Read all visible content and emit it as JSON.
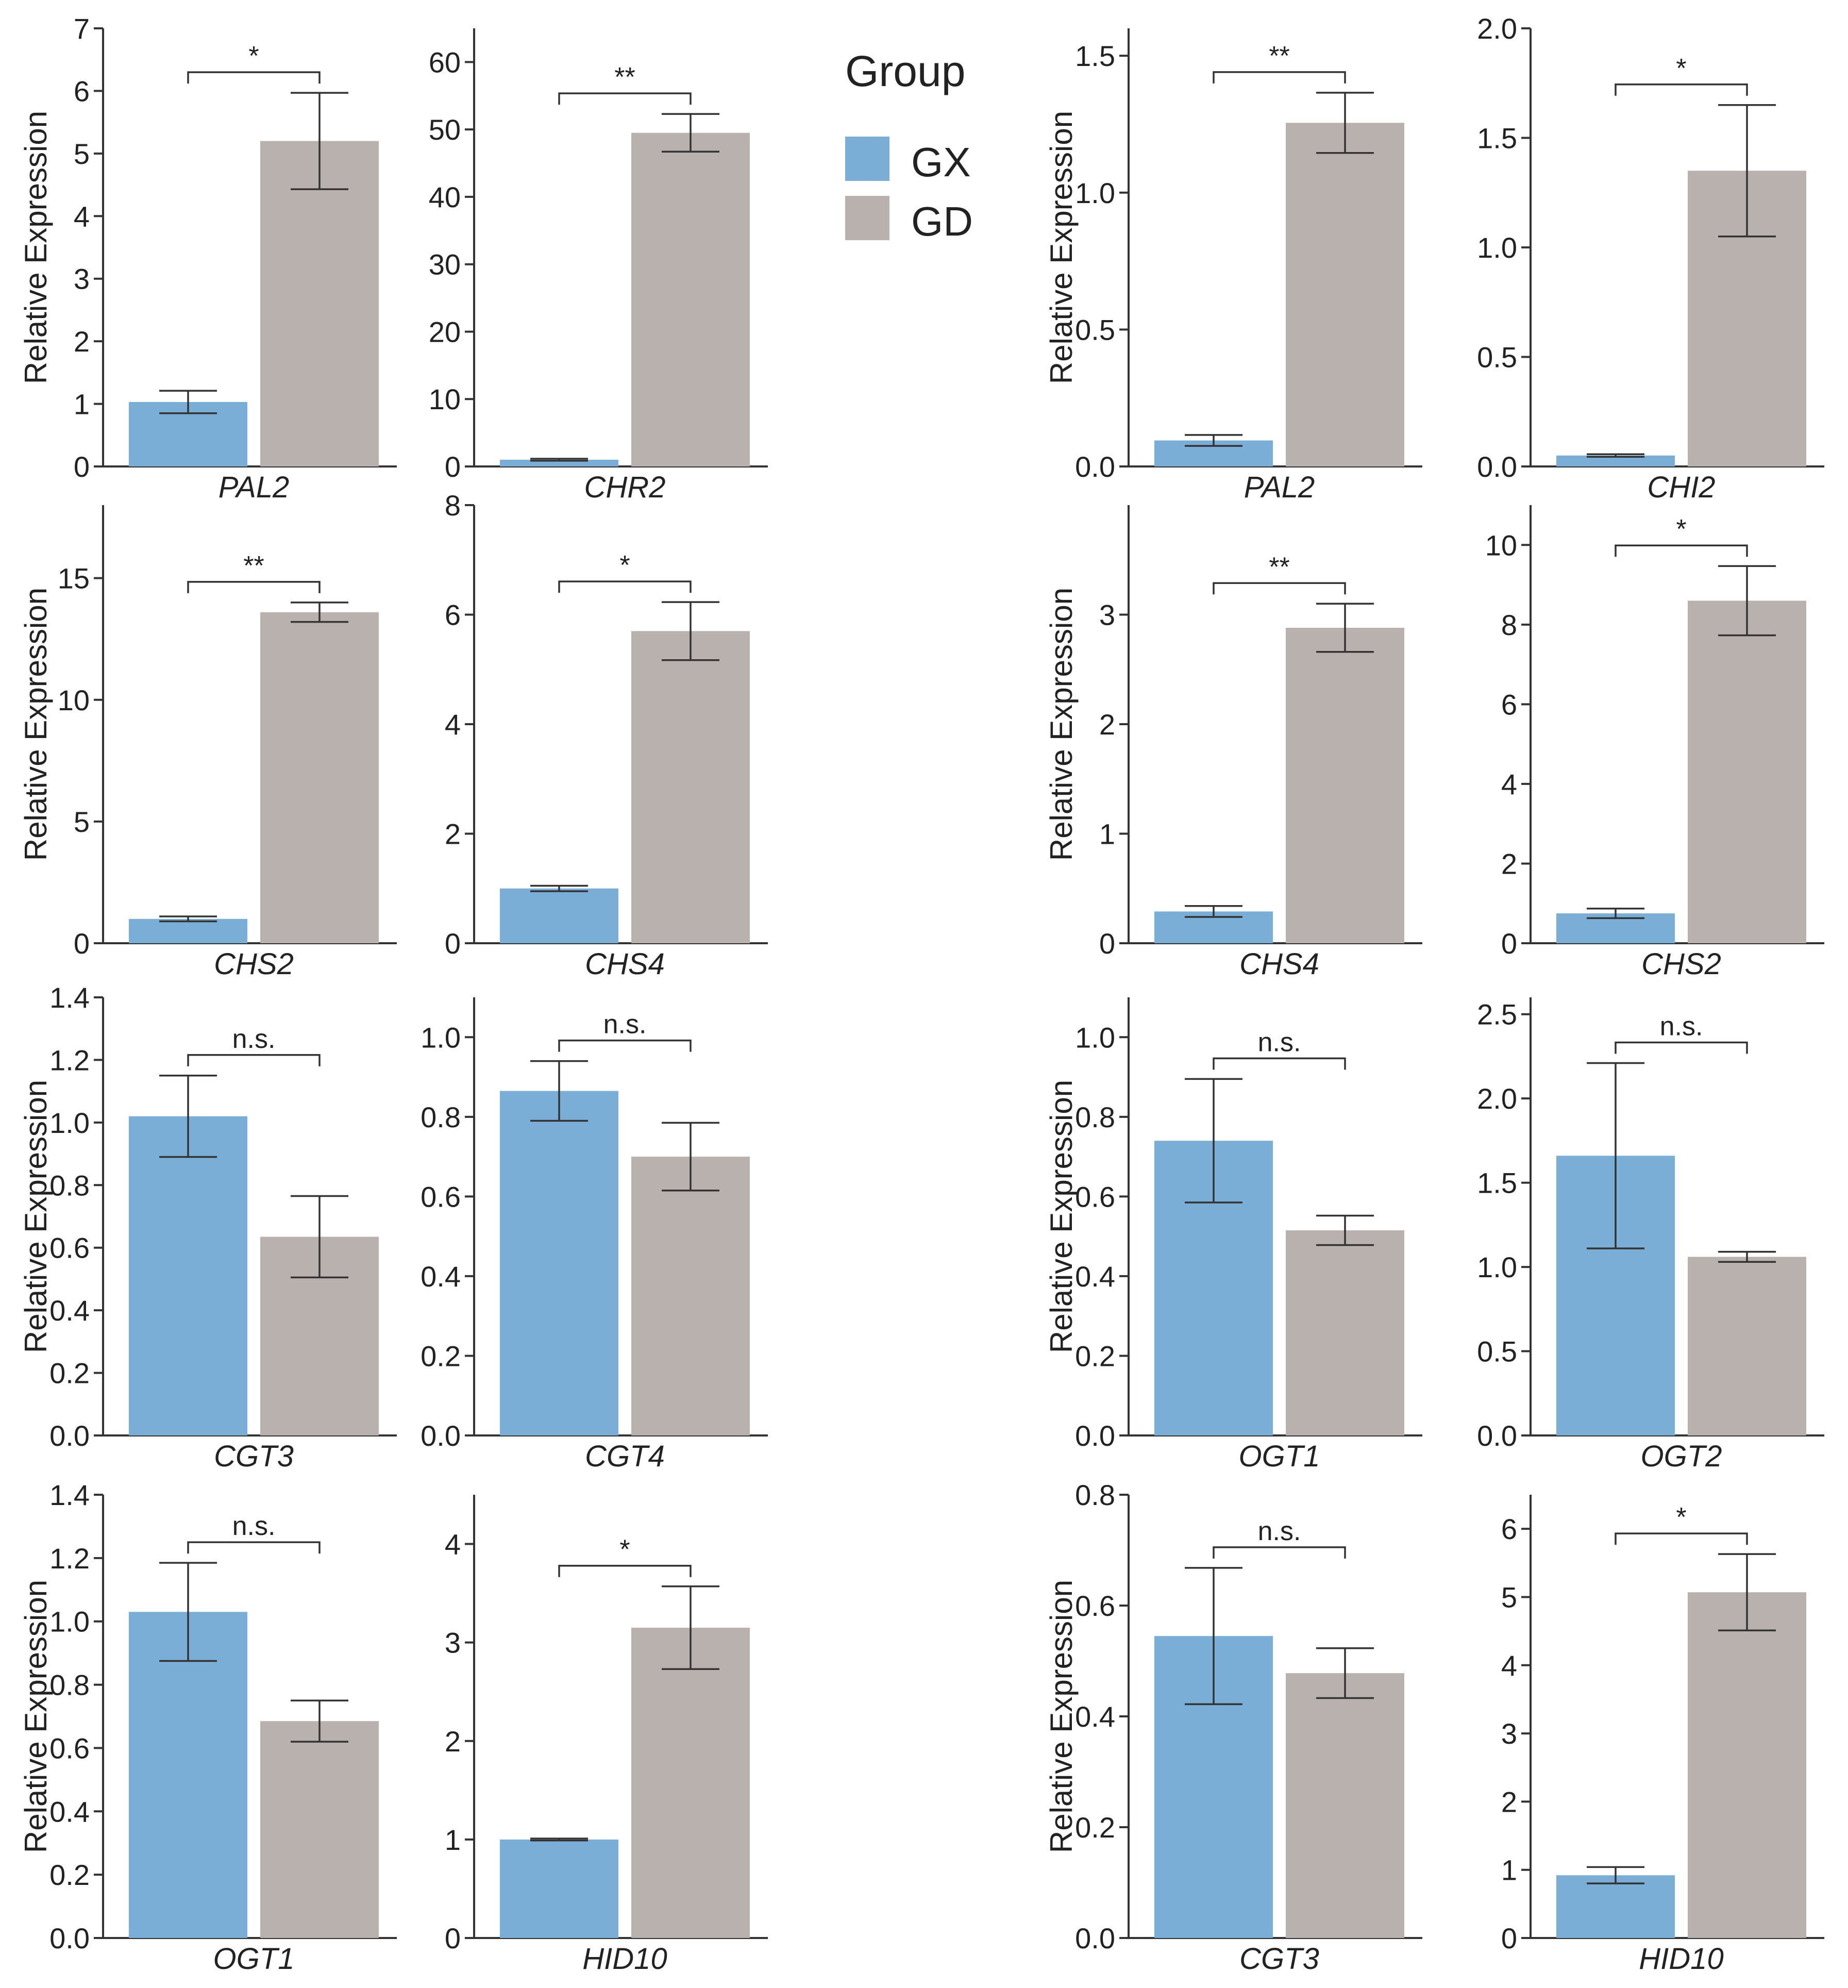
{
  "legend": {
    "title": "Group",
    "items": [
      {
        "label": "GX",
        "color": "#7aaed6"
      },
      {
        "label": "GD",
        "color": "#b9b1ad"
      }
    ]
  },
  "chart_data": [
    {
      "type": "bar",
      "title": "",
      "gene": "PAL2",
      "ylabel": "Relative  Expression",
      "ylim": [
        0,
        7
      ],
      "ticks": [
        "0",
        "1",
        "2",
        "3",
        "4",
        "5",
        "6",
        "7"
      ],
      "categories": [
        "GX",
        "GD"
      ],
      "values": [
        1.03,
        5.2
      ],
      "errors": [
        0.18,
        0.77
      ],
      "significance": "*"
    },
    {
      "type": "bar",
      "title": "",
      "gene": "CHR2",
      "ylabel": "",
      "ylim": [
        0,
        65
      ],
      "ticks": [
        "0",
        "10",
        "20",
        "30",
        "40",
        "50",
        "60"
      ],
      "categories": [
        "GX",
        "GD"
      ],
      "values": [
        1.0,
        49.5
      ],
      "errors": [
        0.15,
        2.8
      ],
      "significance": "**"
    },
    {
      "type": "bar",
      "title": "",
      "gene": "PAL2",
      "ylabel": "Relative  Expression",
      "ylim": [
        0,
        1.6
      ],
      "ticks": [
        "0.0",
        "0.5",
        "1.0",
        "1.5"
      ],
      "categories": [
        "GX",
        "GD"
      ],
      "values": [
        0.095,
        1.255
      ],
      "errors": [
        0.02,
        0.11
      ],
      "significance": "**"
    },
    {
      "type": "bar",
      "title": "",
      "gene": "CHI2",
      "ylabel": "",
      "ylim": [
        0,
        2.0
      ],
      "ticks": [
        "0.0",
        "0.5",
        "1.0",
        "1.5",
        "2.0"
      ],
      "categories": [
        "GX",
        "GD"
      ],
      "values": [
        0.05,
        1.35
      ],
      "errors": [
        0.006,
        0.3
      ],
      "significance": "*"
    },
    {
      "type": "bar",
      "title": "",
      "gene": "CHS2",
      "ylabel": "Relative  Expression",
      "ylim": [
        0,
        18
      ],
      "ticks": [
        "0",
        "5",
        "10",
        "15"
      ],
      "categories": [
        "GX",
        "GD"
      ],
      "values": [
        1.0,
        13.6
      ],
      "errors": [
        0.1,
        0.4
      ],
      "significance": "**"
    },
    {
      "type": "bar",
      "title": "",
      "gene": "CHS4",
      "ylabel": "",
      "ylim": [
        0,
        8
      ],
      "ticks": [
        "0",
        "2",
        "4",
        "6",
        "8"
      ],
      "categories": [
        "GX",
        "GD"
      ],
      "values": [
        1.0,
        5.7
      ],
      "errors": [
        0.05,
        0.53
      ],
      "significance": "*"
    },
    {
      "type": "bar",
      "title": "",
      "gene": "CHS4",
      "ylabel": "Relative  Expression",
      "ylim": [
        0,
        4
      ],
      "ticks": [
        "0",
        "1",
        "2",
        "3"
      ],
      "categories": [
        "GX",
        "GD"
      ],
      "values": [
        0.29,
        2.88
      ],
      "errors": [
        0.05,
        0.22
      ],
      "significance": "**"
    },
    {
      "type": "bar",
      "title": "",
      "gene": "CHS2",
      "ylabel": "",
      "ylim": [
        0,
        11
      ],
      "ticks": [
        "0",
        "2",
        "4",
        "6",
        "8",
        "10"
      ],
      "categories": [
        "GX",
        "GD"
      ],
      "values": [
        0.75,
        8.6
      ],
      "errors": [
        0.12,
        0.87
      ],
      "significance": "*"
    },
    {
      "type": "bar",
      "title": "",
      "gene": "CGT3",
      "ylabel": "Relative  Expression",
      "ylim": [
        0,
        1.4
      ],
      "ticks": [
        "0.0",
        "0.2",
        "0.4",
        "0.6",
        "0.8",
        "1.0",
        "1.2",
        "1.4"
      ],
      "categories": [
        "GX",
        "GD"
      ],
      "values": [
        1.02,
        0.635
      ],
      "errors": [
        0.13,
        0.13
      ],
      "significance": "n.s."
    },
    {
      "type": "bar",
      "title": "",
      "gene": "CGT4",
      "ylabel": "",
      "ylim": [
        0,
        1.1
      ],
      "ticks": [
        "0.0",
        "0.2",
        "0.4",
        "0.6",
        "0.8",
        "1.0"
      ],
      "categories": [
        "GX",
        "GD"
      ],
      "values": [
        0.865,
        0.7
      ],
      "errors": [
        0.075,
        0.085
      ],
      "significance": "n.s."
    },
    {
      "type": "bar",
      "title": "",
      "gene": "OGT1",
      "ylabel": "Relative  Expression",
      "ylim": [
        0,
        1.1
      ],
      "ticks": [
        "0.0",
        "0.2",
        "0.4",
        "0.6",
        "0.8",
        "1.0"
      ],
      "categories": [
        "GX",
        "GD"
      ],
      "values": [
        0.74,
        0.515
      ],
      "errors": [
        0.155,
        0.037
      ],
      "significance": "n.s."
    },
    {
      "type": "bar",
      "title": "",
      "gene": "OGT2",
      "ylabel": "",
      "ylim": [
        0,
        2.6
      ],
      "ticks": [
        "0.0",
        "0.5",
        "1.0",
        "1.5",
        "2.0",
        "2.5"
      ],
      "categories": [
        "GX",
        "GD"
      ],
      "values": [
        1.66,
        1.06
      ],
      "errors": [
        0.55,
        0.03
      ],
      "significance": "n.s."
    },
    {
      "type": "bar",
      "title": "",
      "gene": "OGT1",
      "ylabel": "Relative  Expression",
      "ylim": [
        0,
        1.4
      ],
      "ticks": [
        "0.0",
        "0.2",
        "0.4",
        "0.6",
        "0.8",
        "1.0",
        "1.2",
        "1.4"
      ],
      "categories": [
        "GX",
        "GD"
      ],
      "values": [
        1.03,
        0.685
      ],
      "errors": [
        0.155,
        0.065
      ],
      "significance": "n.s."
    },
    {
      "type": "bar",
      "title": "",
      "gene": "HID10",
      "ylabel": "",
      "ylim": [
        0,
        4.5
      ],
      "ticks": [
        "0",
        "1",
        "2",
        "3",
        "4"
      ],
      "categories": [
        "GX",
        "GD"
      ],
      "values": [
        1.0,
        3.15
      ],
      "errors": [
        0.01,
        0.42
      ],
      "significance": "*"
    },
    {
      "type": "bar",
      "title": "",
      "gene": "CGT3",
      "ylabel": "Relative  Expression",
      "ylim": [
        0,
        0.8
      ],
      "ticks": [
        "0.0",
        "0.2",
        "0.4",
        "0.6",
        "0.8"
      ],
      "categories": [
        "GX",
        "GD"
      ],
      "values": [
        0.545,
        0.478
      ],
      "errors": [
        0.123,
        0.045
      ],
      "significance": "n.s."
    },
    {
      "type": "bar",
      "title": "",
      "gene": "HID10",
      "ylabel": "",
      "ylim": [
        0,
        6.5
      ],
      "ticks": [
        "0",
        "1",
        "2",
        "3",
        "4",
        "5",
        "6"
      ],
      "categories": [
        "GX",
        "GD"
      ],
      "values": [
        0.92,
        5.07
      ],
      "errors": [
        0.12,
        0.56
      ],
      "significance": "*"
    }
  ]
}
